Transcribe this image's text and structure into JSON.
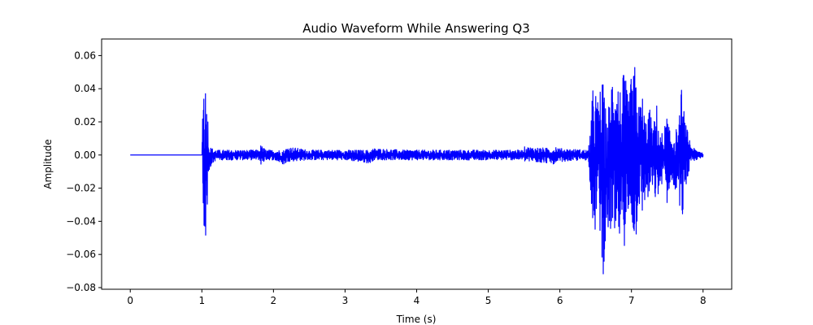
{
  "chart_data": {
    "type": "line",
    "title": "Audio Waveform While Answering Q3",
    "xlabel": "Time (s)",
    "ylabel": "Amplitude",
    "xlim": [
      -0.4,
      8.4
    ],
    "ylim": [
      -0.081,
      0.07
    ],
    "xticks": [
      0,
      1,
      2,
      3,
      4,
      5,
      6,
      7,
      8
    ],
    "xtick_labels": [
      "0",
      "1",
      "2",
      "3",
      "4",
      "5",
      "6",
      "7",
      "8"
    ],
    "yticks": [
      -0.08,
      -0.06,
      -0.04,
      -0.02,
      0.0,
      0.02,
      0.04,
      0.06
    ],
    "ytick_labels": [
      "−0.08",
      "−0.06",
      "−0.04",
      "−0.02",
      "0.00",
      "0.02",
      "0.04",
      "0.06"
    ],
    "grid": false,
    "series": [
      {
        "color": "#0000ff",
        "x": [
          0.0,
          1.0,
          1.01,
          1.03,
          1.05,
          1.07,
          1.09,
          1.11,
          1.15,
          1.2,
          1.3,
          1.8,
          1.82,
          1.9,
          2.0,
          2.15,
          2.2,
          2.5,
          3.0,
          3.35,
          3.4,
          3.8,
          4.0,
          4.5,
          5.0,
          5.48,
          5.5,
          5.9,
          5.95,
          6.0,
          6.4,
          6.48,
          6.52,
          6.55,
          6.6,
          6.65,
          6.7,
          6.75,
          6.8,
          6.85,
          6.9,
          6.95,
          7.0,
          7.05,
          7.1,
          7.15,
          7.2,
          7.25,
          7.3,
          7.35,
          7.4,
          7.45,
          7.5,
          7.55,
          7.6,
          7.65,
          7.7,
          7.75,
          7.8,
          7.85,
          7.9,
          8.0
        ],
        "ymax": [
          0.0,
          0.0,
          0.03,
          0.052,
          0.045,
          0.036,
          0.02,
          0.005,
          0.004,
          0.003,
          0.003,
          0.003,
          0.006,
          0.003,
          0.003,
          0.003,
          0.005,
          0.003,
          0.003,
          0.003,
          0.004,
          0.003,
          0.003,
          0.003,
          0.003,
          0.003,
          0.005,
          0.004,
          0.006,
          0.004,
          0.003,
          0.052,
          0.03,
          0.04,
          0.045,
          0.024,
          0.035,
          0.064,
          0.05,
          0.04,
          0.052,
          0.035,
          0.048,
          0.055,
          0.03,
          0.038,
          0.02,
          0.03,
          0.015,
          0.032,
          0.012,
          0.015,
          0.025,
          0.01,
          0.02,
          0.012,
          0.042,
          0.02,
          0.012,
          0.005,
          0.003,
          0.002
        ],
        "ymin": [
          0.0,
          0.0,
          -0.02,
          -0.046,
          -0.056,
          -0.04,
          -0.02,
          -0.008,
          -0.005,
          -0.003,
          -0.003,
          -0.003,
          -0.006,
          -0.003,
          -0.003,
          -0.006,
          -0.004,
          -0.003,
          -0.003,
          -0.005,
          -0.003,
          -0.003,
          -0.003,
          -0.003,
          -0.003,
          -0.003,
          -0.004,
          -0.005,
          -0.008,
          -0.004,
          -0.003,
          -0.056,
          -0.03,
          -0.04,
          -0.075,
          -0.05,
          -0.045,
          -0.062,
          -0.06,
          -0.05,
          -0.055,
          -0.045,
          -0.04,
          -0.06,
          -0.03,
          -0.04,
          -0.025,
          -0.03,
          -0.02,
          -0.032,
          -0.02,
          -0.015,
          -0.032,
          -0.012,
          -0.03,
          -0.015,
          -0.048,
          -0.02,
          -0.012,
          -0.005,
          -0.003,
          -0.002
        ]
      }
    ]
  }
}
